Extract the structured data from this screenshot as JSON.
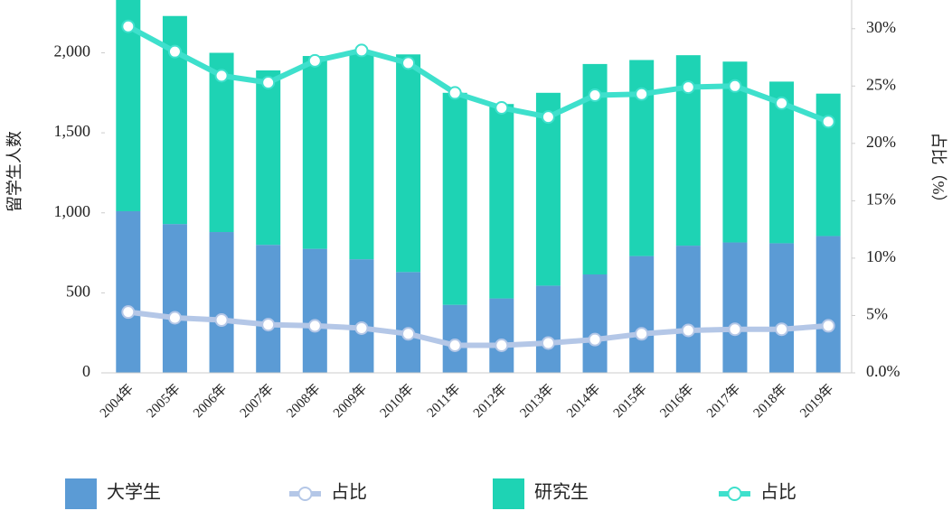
{
  "chart_data": {
    "type": "bar",
    "y_label": "留学生人数",
    "y2_label": "占比（%）",
    "categories": [
      "2004年",
      "2005年",
      "2006年",
      "2007年",
      "2008年",
      "2009年",
      "2010年",
      "2011年",
      "2012年",
      "2013年",
      "2014年",
      "2015年",
      "2016年",
      "2017年",
      "2018年",
      "2019年"
    ],
    "series": [
      {
        "name": "大学生",
        "type": "bar",
        "color": "#5b9bd5",
        "values": [
          1010,
          930,
          880,
          800,
          775,
          710,
          630,
          425,
          465,
          545,
          615,
          730,
          795,
          815,
          810,
          855
        ]
      },
      {
        "name": "占比",
        "type": "line",
        "axis": "y2",
        "color": "#b4c7e7",
        "values": [
          5.3,
          4.8,
          4.6,
          4.2,
          4.1,
          3.9,
          3.4,
          2.4,
          2.4,
          2.6,
          2.9,
          3.4,
          3.7,
          3.8,
          3.8,
          4.1
        ]
      },
      {
        "name": "研究生",
        "type": "bar",
        "color": "#1ed3b4",
        "values": [
          1340,
          1300,
          1120,
          1090,
          1205,
          1290,
          1360,
          1325,
          1215,
          1205,
          1315,
          1225,
          1190,
          1130,
          1010,
          890
        ]
      },
      {
        "name": "占比",
        "type": "line",
        "axis": "y2",
        "color": "#3ee0cc",
        "values": [
          30.2,
          28.0,
          25.9,
          25.3,
          27.2,
          28.1,
          27.0,
          24.4,
          23.1,
          22.3,
          24.2,
          24.3,
          24.9,
          25.0,
          23.5,
          21.9
        ]
      }
    ],
    "ylim": [
      0,
      2330
    ],
    "yticks": [
      0,
      500,
      {
        "value": 1000,
        "label": "1,000"
      },
      {
        "value": 1500,
        "label": "1,500"
      },
      {
        "value": 2000,
        "label": "2,000"
      }
    ],
    "y2lim": [
      0,
      32.5
    ],
    "y2ticks": [
      {
        "value": 0,
        "label": "0.0%"
      },
      {
        "value": 5,
        "label": "5%"
      },
      {
        "value": 10,
        "label": "10%"
      },
      {
        "value": 15,
        "label": "15%"
      },
      {
        "value": 20,
        "label": "20%"
      },
      {
        "value": 25,
        "label": "25%"
      },
      {
        "value": 30,
        "label": "30%"
      }
    ],
    "grid": false,
    "legend": "bottom"
  }
}
